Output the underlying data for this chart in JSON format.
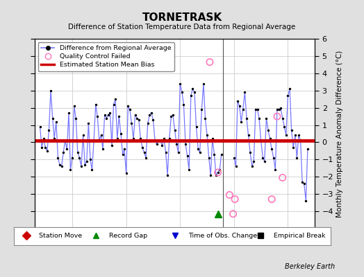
{
  "title": "TORNETRASK",
  "subtitle": "Difference of Station Temperature Data from Regional Average",
  "ylabel_right": "Monthly Temperature Anomaly Difference (°C)",
  "xlim": [
    1971.5,
    1997.5
  ],
  "ylim": [
    -5,
    6
  ],
  "yticks": [
    -4,
    -3,
    -2,
    -1,
    0,
    1,
    2,
    3,
    4,
    5,
    6
  ],
  "xticks": [
    1975,
    1980,
    1985,
    1990,
    1995
  ],
  "background_color": "#e0e0e0",
  "plot_bg_color": "#ffffff",
  "bias_y": 0.1,
  "bias_color": "#cc0000",
  "bias_linewidth": 3.5,
  "vertical_line_x": 1989.0,
  "gap_marker_x": 1988.5,
  "gap_marker_y": -4.15,
  "qc_failed_points": [
    [
      1987.75,
      4.65
    ],
    [
      1988.5,
      -1.75
    ],
    [
      1989.58,
      -3.05
    ],
    [
      1989.92,
      -4.15
    ],
    [
      1990.08,
      -3.3
    ],
    [
      1993.5,
      -3.3
    ],
    [
      1994.0,
      1.5
    ],
    [
      1994.5,
      -2.05
    ]
  ],
  "data": [
    [
      1972.0,
      0.9
    ],
    [
      1972.17,
      -0.3
    ],
    [
      1972.33,
      0.2
    ],
    [
      1972.5,
      -0.3
    ],
    [
      1972.67,
      -0.5
    ],
    [
      1972.83,
      0.7
    ],
    [
      1973.0,
      3.0
    ],
    [
      1973.17,
      1.4
    ],
    [
      1973.33,
      0.2
    ],
    [
      1973.5,
      1.2
    ],
    [
      1973.67,
      -0.9
    ],
    [
      1973.83,
      -1.3
    ],
    [
      1974.0,
      -1.4
    ],
    [
      1974.17,
      -0.6
    ],
    [
      1974.33,
      0.1
    ],
    [
      1974.5,
      -0.4
    ],
    [
      1974.67,
      1.7
    ],
    [
      1974.83,
      -1.6
    ],
    [
      1975.0,
      -0.9
    ],
    [
      1975.17,
      2.1
    ],
    [
      1975.33,
      1.4
    ],
    [
      1975.5,
      -0.6
    ],
    [
      1975.67,
      -0.9
    ],
    [
      1975.83,
      -1.4
    ],
    [
      1976.0,
      0.4
    ],
    [
      1976.17,
      -1.3
    ],
    [
      1976.33,
      -1.1
    ],
    [
      1976.5,
      1.1
    ],
    [
      1976.67,
      -1.0
    ],
    [
      1976.83,
      -1.6
    ],
    [
      1977.0,
      0.1
    ],
    [
      1977.17,
      2.2
    ],
    [
      1977.33,
      1.5
    ],
    [
      1977.5,
      0.1
    ],
    [
      1977.67,
      0.4
    ],
    [
      1977.83,
      -0.4
    ],
    [
      1978.0,
      1.6
    ],
    [
      1978.17,
      1.4
    ],
    [
      1978.33,
      1.6
    ],
    [
      1978.5,
      1.7
    ],
    [
      1978.67,
      -0.2
    ],
    [
      1978.83,
      2.2
    ],
    [
      1979.0,
      2.5
    ],
    [
      1979.17,
      0.2
    ],
    [
      1979.33,
      1.5
    ],
    [
      1979.5,
      0.5
    ],
    [
      1979.67,
      -0.7
    ],
    [
      1979.83,
      -0.4
    ],
    [
      1980.0,
      -1.8
    ],
    [
      1980.17,
      2.1
    ],
    [
      1980.33,
      1.9
    ],
    [
      1980.5,
      1.1
    ],
    [
      1980.67,
      0.2
    ],
    [
      1980.83,
      1.6
    ],
    [
      1981.0,
      1.4
    ],
    [
      1981.17,
      1.3
    ],
    [
      1981.33,
      0.2
    ],
    [
      1981.5,
      -0.3
    ],
    [
      1981.67,
      -0.6
    ],
    [
      1981.83,
      -0.9
    ],
    [
      1982.0,
      1.1
    ],
    [
      1982.17,
      1.6
    ],
    [
      1982.33,
      1.7
    ],
    [
      1982.5,
      1.3
    ],
    [
      1982.67,
      0.1
    ],
    [
      1982.83,
      -0.1
    ],
    [
      1983.0,
      0.1
    ],
    [
      1983.17,
      0.1
    ],
    [
      1983.33,
      -0.2
    ],
    [
      1983.5,
      0.2
    ],
    [
      1983.67,
      -0.6
    ],
    [
      1983.83,
      -1.9
    ],
    [
      1984.0,
      0.2
    ],
    [
      1984.17,
      1.5
    ],
    [
      1984.33,
      1.6
    ],
    [
      1984.5,
      0.7
    ],
    [
      1984.67,
      -0.1
    ],
    [
      1984.83,
      -0.6
    ],
    [
      1985.0,
      3.4
    ],
    [
      1985.17,
      2.9
    ],
    [
      1985.33,
      2.2
    ],
    [
      1985.5,
      -0.1
    ],
    [
      1985.67,
      -0.8
    ],
    [
      1985.83,
      -1.6
    ],
    [
      1986.0,
      2.7
    ],
    [
      1986.17,
      3.1
    ],
    [
      1986.33,
      2.9
    ],
    [
      1986.5,
      0.9
    ],
    [
      1986.67,
      -0.4
    ],
    [
      1986.83,
      -0.6
    ],
    [
      1987.0,
      1.9
    ],
    [
      1987.17,
      3.4
    ],
    [
      1987.33,
      1.4
    ],
    [
      1987.5,
      0.4
    ],
    [
      1987.67,
      -0.9
    ],
    [
      1987.83,
      -1.9
    ],
    [
      1988.0,
      0.2
    ],
    [
      1988.17,
      -0.7
    ],
    [
      1988.33,
      -1.9
    ],
    [
      1988.5,
      -1.75
    ],
    [
      1988.67,
      -1.6
    ],
    [
      1988.83,
      -0.7
    ],
    [
      1990.0,
      -0.9
    ],
    [
      1990.17,
      -1.4
    ],
    [
      1990.33,
      2.4
    ],
    [
      1990.5,
      2.1
    ],
    [
      1990.67,
      1.2
    ],
    [
      1990.83,
      1.9
    ],
    [
      1991.0,
      2.9
    ],
    [
      1991.17,
      1.4
    ],
    [
      1991.33,
      0.4
    ],
    [
      1991.5,
      -0.6
    ],
    [
      1991.67,
      -1.4
    ],
    [
      1991.83,
      -1.1
    ],
    [
      1992.0,
      1.9
    ],
    [
      1992.17,
      1.9
    ],
    [
      1992.33,
      1.4
    ],
    [
      1992.5,
      0.1
    ],
    [
      1992.67,
      -0.9
    ],
    [
      1992.83,
      -1.1
    ],
    [
      1993.0,
      1.4
    ],
    [
      1993.17,
      0.7
    ],
    [
      1993.33,
      0.2
    ],
    [
      1993.5,
      -0.4
    ],
    [
      1993.67,
      -0.9
    ],
    [
      1993.83,
      -1.6
    ],
    [
      1994.0,
      1.9
    ],
    [
      1994.17,
      1.9
    ],
    [
      1994.33,
      2.0
    ],
    [
      1994.5,
      1.4
    ],
    [
      1994.67,
      0.9
    ],
    [
      1994.83,
      0.4
    ],
    [
      1995.0,
      2.7
    ],
    [
      1995.17,
      3.1
    ],
    [
      1995.33,
      0.7
    ],
    [
      1995.5,
      -0.3
    ],
    [
      1995.67,
      0.4
    ],
    [
      1995.83,
      -0.9
    ],
    [
      1996.0,
      0.4
    ],
    [
      1996.17,
      0.1
    ],
    [
      1996.33,
      -2.3
    ],
    [
      1996.5,
      -2.4
    ],
    [
      1996.67,
      -3.4
    ],
    [
      1996.83,
      -0.4
    ]
  ],
  "line_color": "#7777ff",
  "line_color_fill": "#aaaaff",
  "dot_color": "#000000",
  "qc_color": "#ff77bb",
  "grid_color": "#cccccc",
  "bot_legend_items": [
    {
      "marker": "D",
      "color": "#cc0000",
      "label": "Station Move"
    },
    {
      "marker": "^",
      "color": "#008800",
      "label": "Record Gap"
    },
    {
      "marker": "v",
      "color": "#0000cc",
      "label": "Time of Obs. Change"
    },
    {
      "marker": "s",
      "color": "#000000",
      "label": "Empirical Break"
    }
  ]
}
